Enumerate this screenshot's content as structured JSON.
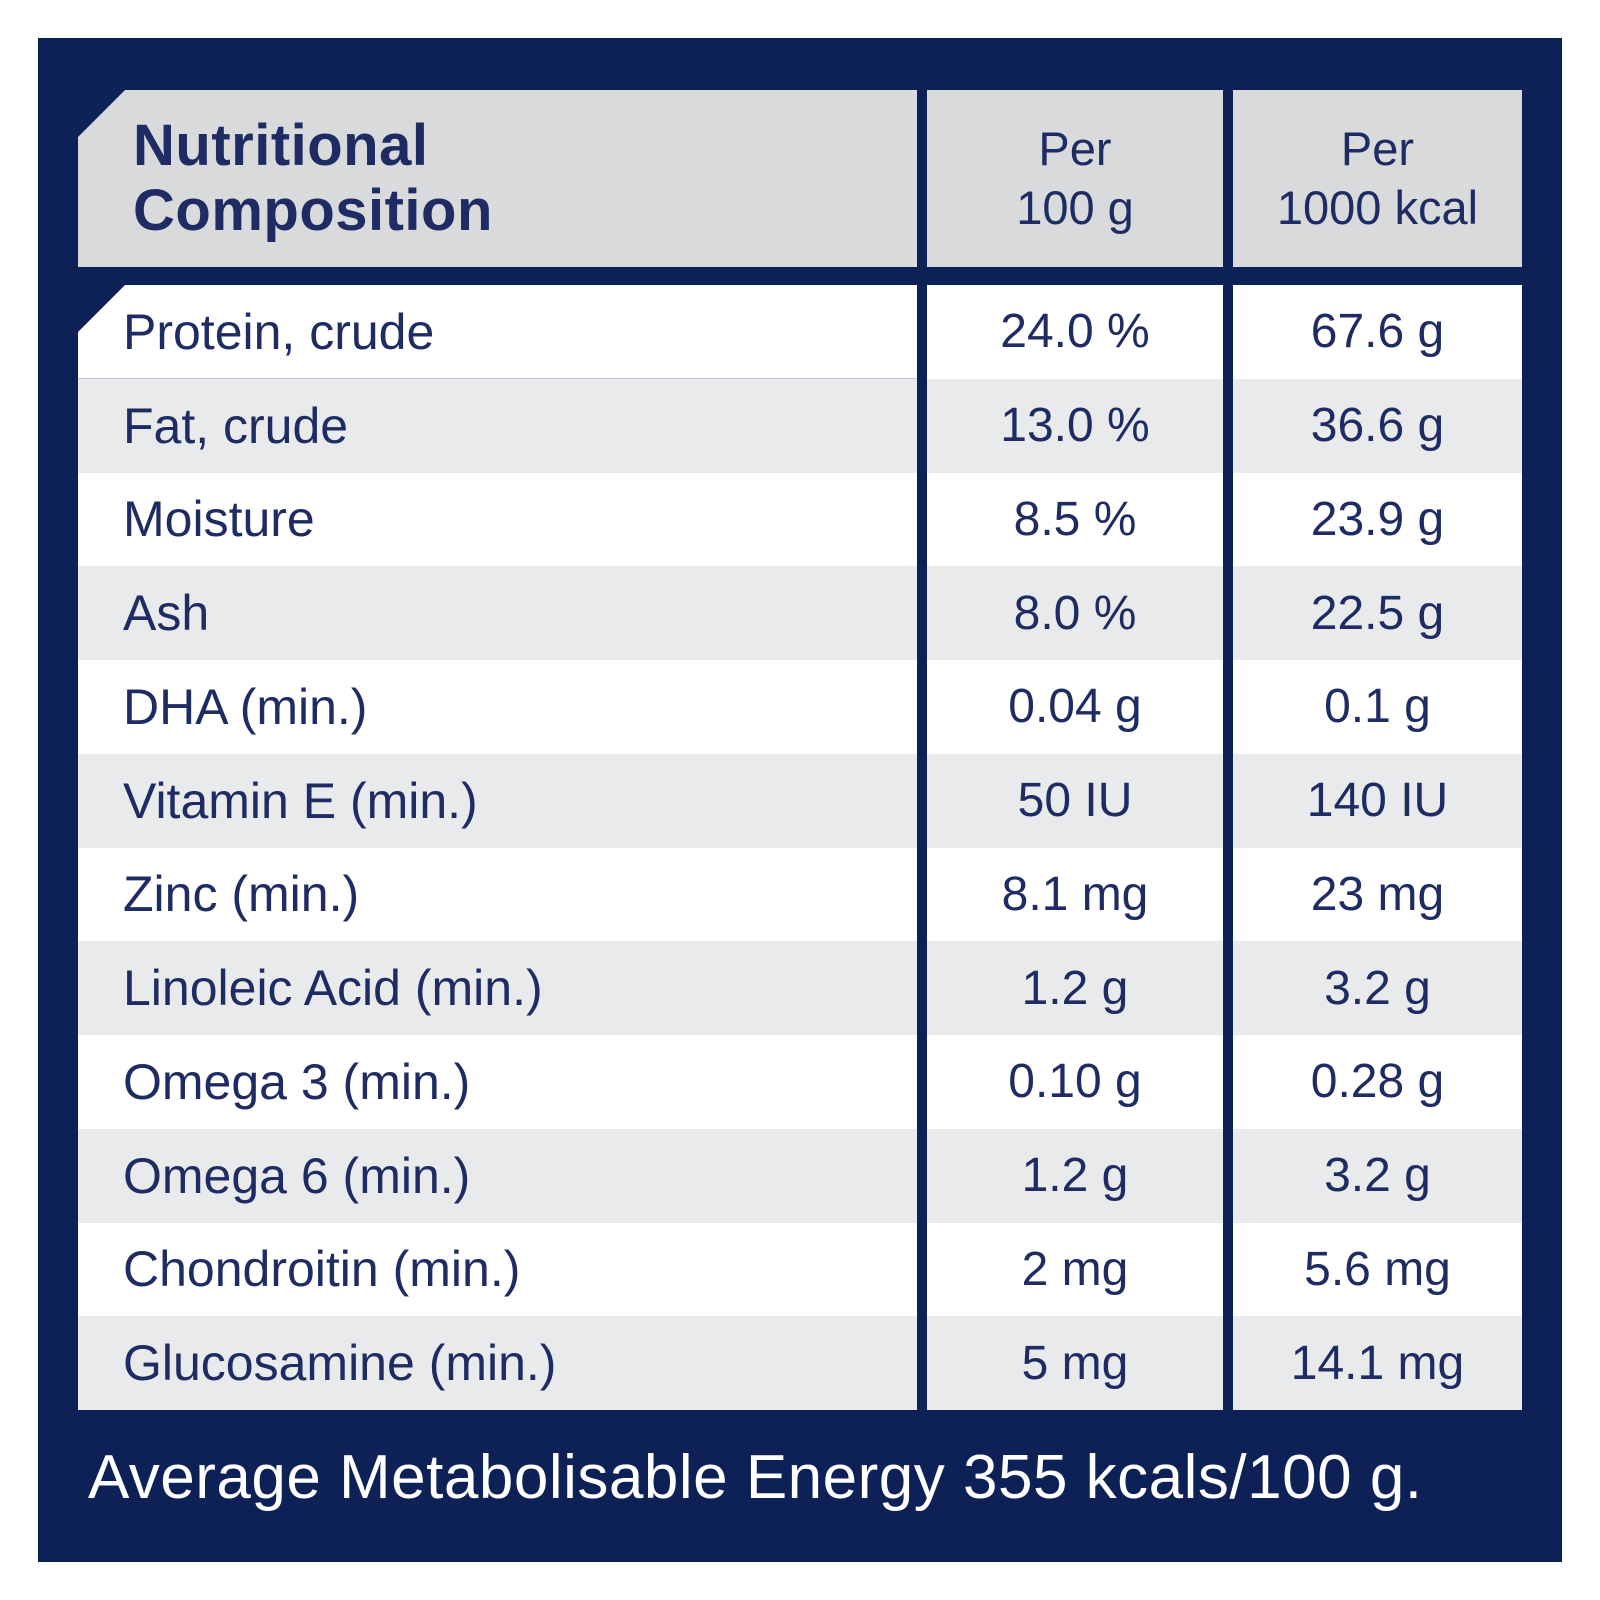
{
  "colors": {
    "panel_navy": "#0e2156",
    "text_navy": "#1e2c63",
    "header_gray": "#d8dadc",
    "row_gray": "#e9eaeb",
    "row_white": "#ffffff",
    "footer_text_color": "#ffffff"
  },
  "header": {
    "title_line1": "Nutritional",
    "title_line2": "Composition",
    "col_100g_line1": "Per",
    "col_100g_line2": "100 g",
    "col_1000kcal_line1": "Per",
    "col_1000kcal_line2": "1000 kcal"
  },
  "rows": [
    {
      "label": "Protein, crude",
      "per_100g": "24.0 %",
      "per_1000kcal": "67.6 g"
    },
    {
      "label": "Fat, crude",
      "per_100g": "13.0 %",
      "per_1000kcal": "36.6 g"
    },
    {
      "label": "Moisture",
      "per_100g": "8.5 %",
      "per_1000kcal": "23.9 g"
    },
    {
      "label": "Ash",
      "per_100g": "8.0 %",
      "per_1000kcal": "22.5 g"
    },
    {
      "label": "DHA (min.)",
      "per_100g": "0.04 g",
      "per_1000kcal": "0.1 g"
    },
    {
      "label": "Vitamin E (min.)",
      "per_100g": "50 IU",
      "per_1000kcal": "140 IU"
    },
    {
      "label": "Zinc (min.)",
      "per_100g": "8.1 mg",
      "per_1000kcal": "23 mg"
    },
    {
      "label": "Linoleic Acid (min.)",
      "per_100g": "1.2 g",
      "per_1000kcal": "3.2 g"
    },
    {
      "label": "Omega 3 (min.)",
      "per_100g": "0.10 g",
      "per_1000kcal": "0.28 g"
    },
    {
      "label": "Omega 6 (min.)",
      "per_100g": "1.2 g",
      "per_1000kcal": "3.2 g"
    },
    {
      "label": "Chondroitin (min.)",
      "per_100g": "2 mg",
      "per_1000kcal": "5.6 mg"
    },
    {
      "label": "Glucosamine (min.)",
      "per_100g": "5 mg",
      "per_1000kcal": "14.1 mg"
    }
  ],
  "footer": {
    "text": "Average Metabolisable Energy 355 kcals/100 g."
  }
}
